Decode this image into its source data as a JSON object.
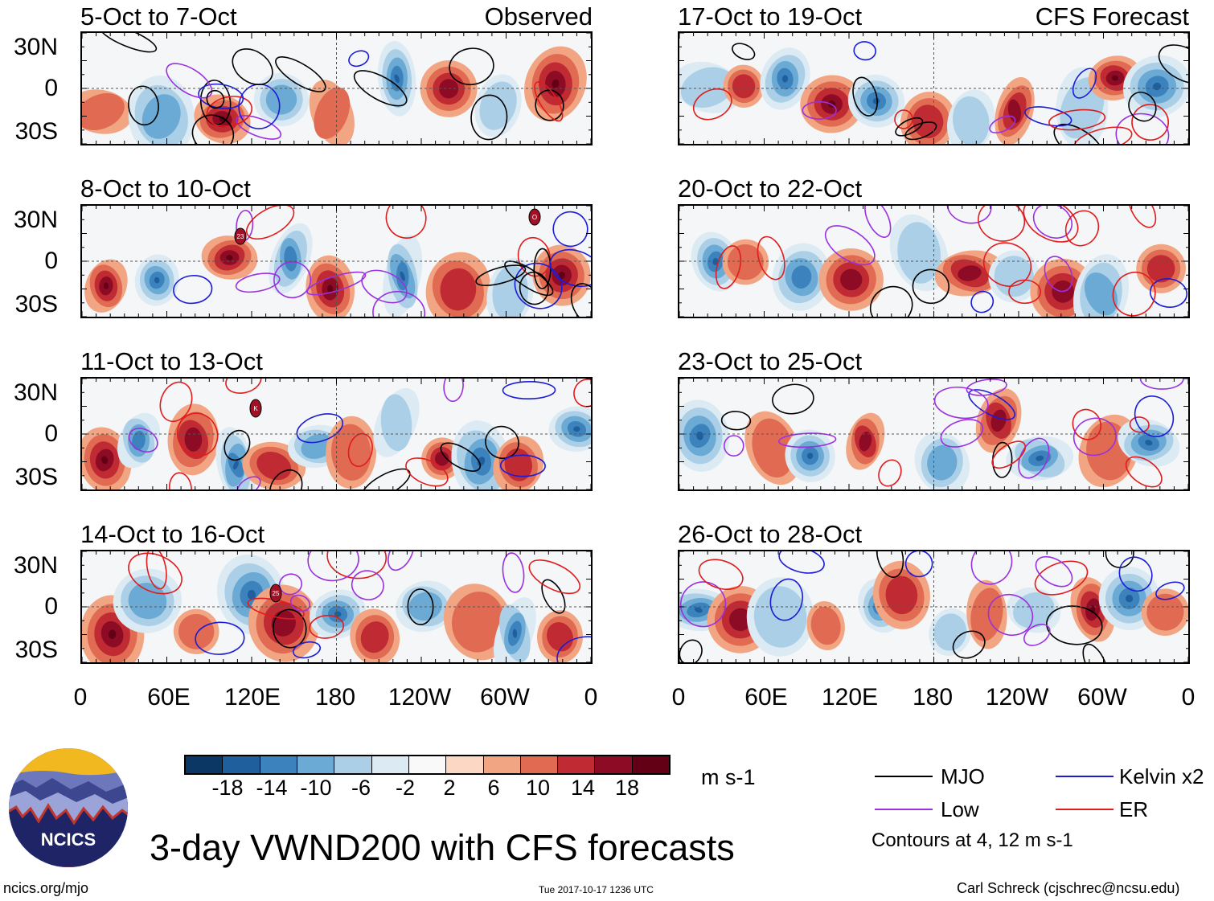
{
  "main_title": "3-day VWND200 with CFS forecasts",
  "left_column_label": "Observed",
  "right_column_label": "CFS Forecast",
  "lat_labels": [
    "30N",
    "0",
    "30S"
  ],
  "lon_labels": [
    "0",
    "60E",
    "120E",
    "180",
    "120W",
    "60W",
    "0"
  ],
  "panels_left": [
    {
      "title": "5-Oct to 7-Oct"
    },
    {
      "title": "8-Oct to 10-Oct"
    },
    {
      "title": "11-Oct to 13-Oct"
    },
    {
      "title": "14-Oct to 16-Oct"
    }
  ],
  "panels_right": [
    {
      "title": "17-Oct to 19-Oct"
    },
    {
      "title": "20-Oct to 22-Oct"
    },
    {
      "title": "23-Oct to 25-Oct"
    },
    {
      "title": "26-Oct to 28-Oct"
    }
  ],
  "storm_markers": [
    {
      "label": "23"
    },
    {
      "label": "O"
    },
    {
      "label": "K"
    },
    {
      "label": "25"
    }
  ],
  "colorbar": {
    "unit": "m s-1",
    "tick_labels": [
      "-18",
      "-14",
      "-10",
      "-6",
      "-2",
      "2",
      "6",
      "10",
      "14",
      "18"
    ],
    "colors": [
      "#0a3764",
      "#1f5f9e",
      "#3c82bc",
      "#6aaad4",
      "#aacfe6",
      "#dbeaf3",
      "#f9f9f9",
      "#fbd7c4",
      "#f2a583",
      "#e06a52",
      "#bf2a33",
      "#8e0b25",
      "#630016"
    ]
  },
  "legend": {
    "items": [
      {
        "label": "MJO",
        "color": "#000000"
      },
      {
        "label": "Kelvin x2",
        "color": "#1c1cd6"
      },
      {
        "label": "Low",
        "color": "#9b30e0"
      },
      {
        "label": "ER",
        "color": "#e01c1c"
      }
    ],
    "note": "Contours at 4, 12 m s-1"
  },
  "logo": {
    "text": "NCICS"
  },
  "footer": {
    "website": "ncics.org/mjo",
    "timestamp": "Tue 2017-10-17 1236 UTC",
    "credit": "Carl Schreck (cjschrec@ncsu.edu)"
  },
  "chart_data": {
    "type": "heatmap",
    "title": "3-day VWND200 with CFS forecasts",
    "variable": "200-hPa meridional wind (VWND200)",
    "unit": "m s-1",
    "x_axis": {
      "ticks": [
        "0",
        "60E",
        "120E",
        "180",
        "120W",
        "60W",
        "0"
      ],
      "range_deg": [
        0,
        360
      ]
    },
    "y_axis": {
      "ticks": [
        "30N",
        "0",
        "30S"
      ],
      "range_deg": [
        -40,
        40
      ]
    },
    "color_levels": [
      -18,
      -14,
      -10,
      -6,
      -2,
      2,
      6,
      10,
      14,
      18
    ],
    "observed_periods": [
      "5-Oct to 7-Oct",
      "8-Oct to 10-Oct",
      "11-Oct to 13-Oct",
      "14-Oct to 16-Oct"
    ],
    "forecast_periods": [
      "17-Oct to 19-Oct",
      "20-Oct to 22-Oct",
      "23-Oct to 25-Oct",
      "26-Oct to 28-Oct"
    ],
    "contour_series": [
      "MJO",
      "Kelvin x2",
      "Low",
      "ER"
    ],
    "contour_levels": [
      4,
      12
    ]
  }
}
